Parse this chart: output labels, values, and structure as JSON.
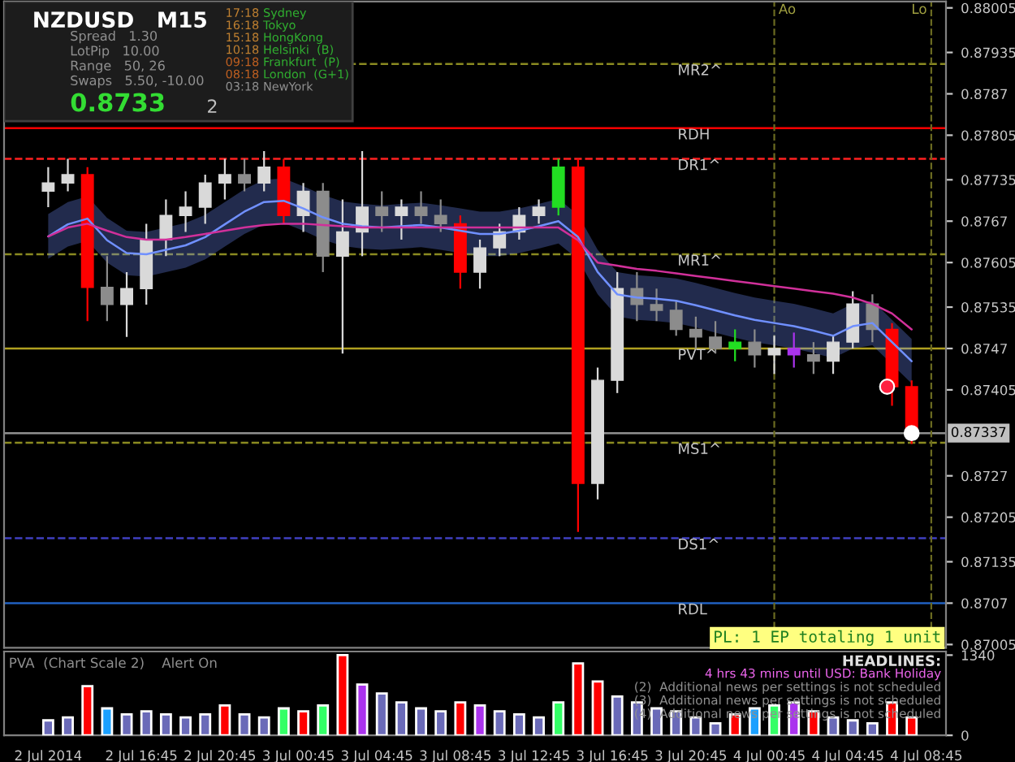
{
  "chart_data": [
    {
      "type": "candlestick",
      "title": "NZDUSD   M15",
      "x": [
        "2014-07-02T12:00",
        "2014-07-02T13:00",
        "2014-07-02T14:00",
        "2014-07-02T15:00",
        "2014-07-02T16:00",
        "2014-07-02T17:00",
        "2014-07-02T18:00",
        "2014-07-02T19:00",
        "2014-07-02T20:00",
        "2014-07-02T21:00",
        "2014-07-02T22:00",
        "2014-07-02T23:00",
        "2014-07-03T00:00",
        "2014-07-03T01:00",
        "2014-07-03T02:00",
        "2014-07-03T03:00",
        "2014-07-03T04:00",
        "2014-07-03T05:00",
        "2014-07-03T06:00",
        "2014-07-03T07:00",
        "2014-07-03T08:00",
        "2014-07-03T09:00",
        "2014-07-03T10:00",
        "2014-07-03T11:00",
        "2014-07-03T12:00",
        "2014-07-03T13:00",
        "2014-07-03T14:00",
        "2014-07-03T15:00",
        "2014-07-03T16:00",
        "2014-07-03T17:00",
        "2014-07-03T18:00",
        "2014-07-03T19:00",
        "2014-07-03T20:00",
        "2014-07-03T21:00",
        "2014-07-03T22:00",
        "2014-07-03T23:00",
        "2014-07-04T00:00",
        "2014-07-04T01:00",
        "2014-07-04T02:00",
        "2014-07-04T03:00",
        "2014-07-04T04:00",
        "2014-07-04T05:00",
        "2014-07-04T06:00",
        "2014-07-04T07:00",
        "2014-07-04T08:00"
      ],
      "ohlc": [
        [
          0.87717,
          0.87755,
          0.87692,
          0.8773
        ],
        [
          0.8773,
          0.87768,
          0.87717,
          0.87743
        ],
        [
          0.87743,
          0.87755,
          0.87513,
          0.87566
        ],
        [
          0.87566,
          0.87615,
          0.87513,
          0.87539
        ],
        [
          0.87539,
          0.8759,
          0.87488,
          0.87564
        ],
        [
          0.87564,
          0.87666,
          0.87539,
          0.87641
        ],
        [
          0.87641,
          0.87704,
          0.87615,
          0.87679
        ],
        [
          0.87679,
          0.87717,
          0.87653,
          0.87692
        ],
        [
          0.87692,
          0.87743,
          0.87666,
          0.8773
        ],
        [
          0.8773,
          0.87768,
          0.87704,
          0.87743
        ],
        [
          0.87743,
          0.87768,
          0.87717,
          0.8773
        ],
        [
          0.8773,
          0.8778,
          0.87717,
          0.87755
        ],
        [
          0.87755,
          0.87768,
          0.87666,
          0.87679
        ],
        [
          0.87679,
          0.8773,
          0.87653,
          0.87717
        ],
        [
          0.87717,
          0.8773,
          0.8759,
          0.87615
        ],
        [
          0.87615,
          0.87704,
          0.87462,
          0.87653
        ],
        [
          0.87653,
          0.8778,
          0.87615,
          0.87692
        ],
        [
          0.87692,
          0.87717,
          0.87653,
          0.87679
        ],
        [
          0.87679,
          0.87704,
          0.87641,
          0.87692
        ],
        [
          0.87692,
          0.87717,
          0.87666,
          0.87679
        ],
        [
          0.87679,
          0.87704,
          0.87653,
          0.87666
        ],
        [
          0.87666,
          0.87679,
          0.87564,
          0.8759
        ],
        [
          0.8759,
          0.87641,
          0.87564,
          0.87628
        ],
        [
          0.87628,
          0.87666,
          0.87615,
          0.87653
        ],
        [
          0.87653,
          0.87692,
          0.87641,
          0.87679
        ],
        [
          0.87679,
          0.87704,
          0.87666,
          0.87692
        ],
        [
          0.87692,
          0.87768,
          0.87679,
          0.87755
        ],
        [
          0.87755,
          0.87768,
          0.87182,
          0.87258
        ],
        [
          0.87258,
          0.8744,
          0.87233,
          0.8742
        ],
        [
          0.8742,
          0.8759,
          0.874,
          0.87564
        ],
        [
          0.87564,
          0.8759,
          0.87513,
          0.87539
        ],
        [
          0.87539,
          0.87564,
          0.87513,
          0.8753
        ],
        [
          0.8753,
          0.87545,
          0.8749,
          0.875
        ],
        [
          0.875,
          0.8752,
          0.8747,
          0.87488
        ],
        [
          0.87488,
          0.87513,
          0.87462,
          0.8747
        ],
        [
          0.8747,
          0.875,
          0.8745,
          0.8748
        ],
        [
          0.8748,
          0.875,
          0.8744,
          0.8746
        ],
        [
          0.8746,
          0.8749,
          0.8743,
          0.8747
        ],
        [
          0.8747,
          0.87495,
          0.8744,
          0.8746
        ],
        [
          0.8746,
          0.8748,
          0.8743,
          0.8745
        ],
        [
          0.8745,
          0.8749,
          0.8743,
          0.8748
        ],
        [
          0.8748,
          0.8756,
          0.8747,
          0.8754
        ],
        [
          0.8754,
          0.87555,
          0.8748,
          0.875
        ],
        [
          0.875,
          0.8751,
          0.8738,
          0.8741
        ],
        [
          0.8741,
          0.8742,
          0.8732,
          0.87337
        ]
      ],
      "colors": [
        "#d9d9d9",
        "#d9d9d9",
        "#ff0000",
        "#8c8c8c",
        "#d9d9d9",
        "#d9d9d9",
        "#d9d9d9",
        "#d9d9d9",
        "#d9d9d9",
        "#d9d9d9",
        "#8c8c8c",
        "#d9d9d9",
        "#ff0000",
        "#d9d9d9",
        "#8c8c8c",
        "#d9d9d9",
        "#d9d9d9",
        "#8c8c8c",
        "#d9d9d9",
        "#8c8c8c",
        "#8c8c8c",
        "#ff0000",
        "#d9d9d9",
        "#d9d9d9",
        "#d9d9d9",
        "#d9d9d9",
        "#22dd22",
        "#ff0000",
        "#d9d9d9",
        "#d9d9d9",
        "#8c8c8c",
        "#8c8c8c",
        "#8c8c8c",
        "#8c8c8c",
        "#8c8c8c",
        "#22dd22",
        "#8c8c8c",
        "#d9d9d9",
        "#aa33ee",
        "#8c8c8c",
        "#d9d9d9",
        "#d9d9d9",
        "#8c8c8c",
        "#ff0000",
        "#ff0000"
      ],
      "series": [
        {
          "type": "line",
          "color": "#7090ff",
          "lower": [
            0.87611,
            0.8763,
            0.87639,
            0.87605,
            0.87585,
            0.87583,
            0.8759,
            0.87597,
            0.8761,
            0.8763,
            0.8765,
            0.87665,
            0.87667,
            0.87655,
            0.87641,
            0.87631,
            0.87627,
            0.87625,
            0.87627,
            0.87629,
            0.87625,
            0.8762,
            0.87615,
            0.87615,
            0.8762,
            0.87627,
            0.87635,
            0.8761,
            0.87555,
            0.8752,
            0.87515,
            0.87513,
            0.8751,
            0.87503,
            0.87495,
            0.87487,
            0.8748,
            0.87475,
            0.8747,
            0.87463,
            0.87455,
            0.8747,
            0.87475,
            0.87445,
            0.87415
          ],
          "upper": [
            0.87681,
            0.877,
            0.87709,
            0.87675,
            0.87655,
            0.87653,
            0.8766,
            0.87667,
            0.8768,
            0.877,
            0.8772,
            0.87735,
            0.87737,
            0.87725,
            0.87711,
            0.87701,
            0.87697,
            0.87695,
            0.87697,
            0.87699,
            0.87695,
            0.8769,
            0.87685,
            0.87685,
            0.8769,
            0.87697,
            0.87705,
            0.8768,
            0.87625,
            0.8759,
            0.87585,
            0.87583,
            0.8758,
            0.87573,
            0.87565,
            0.87557,
            0.8755,
            0.87545,
            0.8754,
            0.87533,
            0.87525,
            0.8754,
            0.87545,
            0.87515,
            0.87485
          ],
          "values": [
            0.87646,
            0.87665,
            0.87674,
            0.8764,
            0.8762,
            0.87618,
            0.87625,
            0.87632,
            0.87645,
            0.87665,
            0.87685,
            0.877,
            0.87702,
            0.8769,
            0.87676,
            0.87666,
            0.87662,
            0.8766,
            0.87662,
            0.87664,
            0.8766,
            0.87655,
            0.8765,
            0.8765,
            0.87655,
            0.87662,
            0.8767,
            0.87645,
            0.8759,
            0.87555,
            0.8755,
            0.87548,
            0.87545,
            0.87538,
            0.8753,
            0.87522,
            0.87515,
            0.8751,
            0.87505,
            0.87498,
            0.8749,
            0.87505,
            0.8751,
            0.8748,
            0.8745
          ]
        },
        {
          "type": "line",
          "color": "#d0309a",
          "values": [
            0.87646,
            0.8766,
            0.87666,
            0.87655,
            0.87645,
            0.87641,
            0.87641,
            0.87645,
            0.8765,
            0.87655,
            0.8766,
            0.87664,
            0.87666,
            0.87666,
            0.87664,
            0.87662,
            0.8766,
            0.8766,
            0.8766,
            0.8766,
            0.8766,
            0.8766,
            0.8766,
            0.8766,
            0.8766,
            0.8766,
            0.8766,
            0.8764,
            0.87605,
            0.876,
            0.87595,
            0.87592,
            0.87588,
            0.87584,
            0.8758,
            0.87576,
            0.87572,
            0.87568,
            0.87564,
            0.8756,
            0.87556,
            0.8755,
            0.8754,
            0.87525,
            0.875
          ]
        },
        {
          "type": "scatter",
          "x": [
            "2014-07-04T06:45",
            "2014-07-04T08:00"
          ],
          "values": [
            0.8741,
            0.87337
          ],
          "colors": [
            "#ff2040",
            "#ffffff"
          ],
          "marker": "circle"
        }
      ],
      "xlim": [
        "2014-07-02T09:45",
        "2014-07-04T09:45"
      ],
      "ylim": [
        0.87,
        0.88015
      ],
      "yticks": [
        0.88005,
        0.87935,
        0.8787,
        0.87805,
        0.87735,
        0.8767,
        0.87605,
        0.87535,
        0.8747,
        0.87405,
        0.8727,
        0.87205,
        0.87135,
        0.8707,
        0.87005
      ],
      "tick_labels": "y",
      "grid": false,
      "ref_lines": [
        {
          "axis": "y",
          "value": 0.87917,
          "label": "MR2^",
          "color": "#8a8a20",
          "line_style": "dashed"
        },
        {
          "axis": "y",
          "value": 0.87816,
          "label": "RDH",
          "color": "#ff0000",
          "line_style": "solid"
        },
        {
          "axis": "y",
          "value": 0.87768,
          "label": "DR1^",
          "color": "#ff2020",
          "line_style": "dashed"
        },
        {
          "axis": "y",
          "value": 0.87618,
          "label": "MR1^",
          "color": "#8a8a20",
          "line_style": "dashed"
        },
        {
          "axis": "y",
          "value": 0.8747,
          "label": "PVT^",
          "color": "#b0a020",
          "line_style": "solid"
        },
        {
          "axis": "y",
          "value": 0.87337,
          "label": "0.87337",
          "color": "#909090",
          "line_style": "solid"
        },
        {
          "axis": "y",
          "value": 0.87322,
          "label": "MS1^",
          "color": "#8a8a20",
          "line_style": "dashed"
        },
        {
          "axis": "y",
          "value": 0.87172,
          "label": "DS1^",
          "color": "#4040c0",
          "line_style": "dashed"
        },
        {
          "axis": "y",
          "value": 0.8707,
          "label": "RDL",
          "color": "#2060c0",
          "line_style": "solid"
        },
        {
          "axis": "x",
          "value": "2014-07-04T01:00",
          "label": "Ao",
          "color": "#6a6a20",
          "line_style": "dashed"
        },
        {
          "axis": "x",
          "value": "2014-07-04T09:00",
          "label": "Lo",
          "color": "#6a6a20",
          "line_style": "dashed"
        }
      ],
      "annotations": [
        "Spread   1.30",
        "LotPip   10.00",
        "Range   50, 26",
        "Swaps   5.50, -10.00",
        "0.8733",
        "2",
        "17:18",
        "16:18",
        "15:18",
        "10:18",
        "09:18",
        "08:18",
        "03:18",
        "Sydney",
        "Tokyo",
        "HongKong",
        "Helsinki  (B)",
        "Frankfurt  (P)",
        "London  (G+1)",
        "NewYork",
        "PL: 1 EP totaling 1 unit"
      ],
      "legend": false
    },
    {
      "type": "bar",
      "title": "PVA  (Chart Scale 2)    Alert On",
      "x": [
        "2014-07-02T12:00",
        "2014-07-02T13:00",
        "2014-07-02T14:00",
        "2014-07-02T15:00",
        "2014-07-02T16:00",
        "2014-07-02T17:00",
        "2014-07-02T18:00",
        "2014-07-02T19:00",
        "2014-07-02T20:00",
        "2014-07-02T21:00",
        "2014-07-02T22:00",
        "2014-07-02T23:00",
        "2014-07-03T00:00",
        "2014-07-03T01:00",
        "2014-07-03T02:00",
        "2014-07-03T03:00",
        "2014-07-03T04:00",
        "2014-07-03T05:00",
        "2014-07-03T06:00",
        "2014-07-03T07:00",
        "2014-07-03T08:00",
        "2014-07-03T09:00",
        "2014-07-03T10:00",
        "2014-07-03T11:00",
        "2014-07-03T12:00",
        "2014-07-03T13:00",
        "2014-07-03T14:00",
        "2014-07-03T15:00",
        "2014-07-03T16:00",
        "2014-07-03T17:00",
        "2014-07-03T18:00",
        "2014-07-03T19:00",
        "2014-07-03T20:00",
        "2014-07-03T21:00",
        "2014-07-03T22:00",
        "2014-07-03T23:00",
        "2014-07-04T00:00",
        "2014-07-04T01:00",
        "2014-07-04T02:00",
        "2014-07-04T03:00",
        "2014-07-04T04:00",
        "2014-07-04T05:00",
        "2014-07-04T06:00",
        "2014-07-04T07:00",
        "2014-07-04T08:00"
      ],
      "values": [
        250,
        300,
        820,
        450,
        350,
        400,
        350,
        300,
        350,
        500,
        350,
        300,
        450,
        400,
        500,
        1340,
        850,
        700,
        550,
        450,
        400,
        550,
        500,
        400,
        350,
        300,
        550,
        1200,
        900,
        650,
        550,
        450,
        400,
        300,
        200,
        350,
        450,
        500,
        550,
        400,
        300,
        250,
        200,
        550,
        300
      ],
      "colors": [
        "#6a6ab8",
        "#6a6ab8",
        "#ff0000",
        "#1aa0ff",
        "#6a6ab8",
        "#6a6ab8",
        "#6a6ab8",
        "#6a6ab8",
        "#6a6ab8",
        "#ff0000",
        "#6a6ab8",
        "#6a6ab8",
        "#33ff66",
        "#ff0000",
        "#33ff66",
        "#ff0000",
        "#aa33ee",
        "#6a6ab8",
        "#6a6ab8",
        "#6a6ab8",
        "#6a6ab8",
        "#ff0000",
        "#aa33ee",
        "#6a6ab8",
        "#6a6ab8",
        "#6a6ab8",
        "#33ff66",
        "#ff0000",
        "#ff0000",
        "#6a6ab8",
        "#6a6ab8",
        "#6a6ab8",
        "#6a6ab8",
        "#6a6ab8",
        "#6a6ab8",
        "#ff0000",
        "#1aa0ff",
        "#33ff66",
        "#aa33ee",
        "#ff0000",
        "#6a6ab8",
        "#6a6ab8",
        "#6a6ab8",
        "#ff0000",
        "#ff0000"
      ],
      "xlim": [
        "2014-07-02T09:45",
        "2014-07-04T09:45"
      ],
      "xticks": [
        {
          "value": "2014-07-02T12:00",
          "label": "2 Jul 2014"
        },
        {
          "value": "2014-07-02T16:45",
          "label": "2 Jul 16:45"
        },
        {
          "value": "2014-07-02T20:45",
          "label": "2 Jul 20:45"
        },
        {
          "value": "2014-07-03T00:45",
          "label": "3 Jul 00:45"
        },
        {
          "value": "2014-07-03T04:45",
          "label": "3 Jul 04:45"
        },
        {
          "value": "2014-07-03T08:45",
          "label": "3 Jul 08:45"
        },
        {
          "value": "2014-07-03T12:45",
          "label": "3 Jul 12:45"
        },
        {
          "value": "2014-07-03T16:45",
          "label": "3 Jul 16:45"
        },
        {
          "value": "2014-07-03T20:45",
          "label": "3 Jul 20:45"
        },
        {
          "value": "2014-07-04T00:45",
          "label": "4 Jul 00:45"
        },
        {
          "value": "2014-07-04T04:45",
          "label": "4 Jul 04:45"
        },
        {
          "value": "2014-07-04T08:45",
          "label": "4 Jul 08:45"
        }
      ],
      "ylim": [
        0,
        1400
      ],
      "yticks": [
        0,
        1340
      ],
      "grid": false,
      "annotations": [
        "HEADLINES:",
        "4 hrs 43 mins until USD: Bank Holiday",
        "(2)  Additional news per settings is not scheduled",
        "(3)  Additional news per settings is not scheduled",
        "(4)  Additional news per settings is not scheduled"
      ],
      "legend": false
    }
  ]
}
